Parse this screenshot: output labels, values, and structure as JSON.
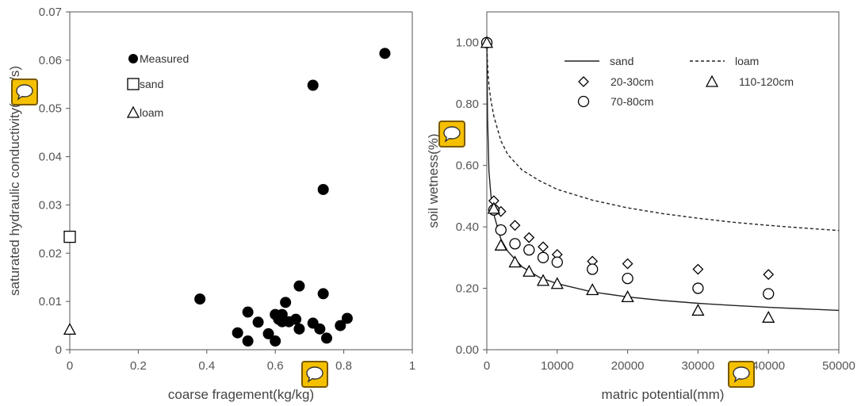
{
  "chart_data": [
    {
      "type": "scatter",
      "xlabel": "coarse fragement(kg/kg)",
      "ylabel": "saturated hydraulic conductivity(mm/s)",
      "xlim": [
        0,
        1
      ],
      "ylim": [
        0,
        0.07
      ],
      "xticks": [
        0,
        0.2,
        0.4,
        0.6,
        0.8,
        1
      ],
      "xtick_labels": [
        "0",
        "0.2",
        "0.4",
        "0.6",
        "0.8",
        "1"
      ],
      "yticks": [
        0,
        0.01,
        0.02,
        0.03,
        0.04,
        0.05,
        0.06,
        0.07
      ],
      "ytick_labels": [
        "0",
        "0.01",
        "0.02",
        "0.03",
        "0.04",
        "0.05",
        "0.06",
        "0.07"
      ],
      "legend": [
        "Measured",
        "sand",
        "loam"
      ],
      "legend_position": "top-left",
      "series": [
        {
          "name": "Measured",
          "marker": "filled-circle",
          "points": [
            [
              0.38,
              0.0105
            ],
            [
              0.49,
              0.0035
            ],
            [
              0.52,
              0.0078
            ],
            [
              0.52,
              0.0018
            ],
            [
              0.55,
              0.0057
            ],
            [
              0.58,
              0.0033
            ],
            [
              0.6,
              0.0073
            ],
            [
              0.6,
              0.0018
            ],
            [
              0.61,
              0.0063
            ],
            [
              0.62,
              0.0073
            ],
            [
              0.62,
              0.0058
            ],
            [
              0.63,
              0.0098
            ],
            [
              0.64,
              0.0058
            ],
            [
              0.66,
              0.0063
            ],
            [
              0.67,
              0.0043
            ],
            [
              0.67,
              0.0132
            ],
            [
              0.71,
              0.0548
            ],
            [
              0.71,
              0.0055
            ],
            [
              0.73,
              0.0043
            ],
            [
              0.74,
              0.0332
            ],
            [
              0.74,
              0.0116
            ],
            [
              0.75,
              0.0024
            ],
            [
              0.79,
              0.005
            ],
            [
              0.81,
              0.0065
            ],
            [
              0.92,
              0.0614
            ]
          ]
        },
        {
          "name": "sand",
          "marker": "open-square",
          "points": [
            [
              0,
              0.0234
            ]
          ]
        },
        {
          "name": "loam",
          "marker": "open-triangle",
          "points": [
            [
              0,
              0.0042
            ]
          ]
        }
      ]
    },
    {
      "type": "line+scatter",
      "xlabel": "matric potential(mm)",
      "ylabel": "soil wetness(%)",
      "xlim": [
        0,
        50000
      ],
      "ylim": [
        0,
        1.1
      ],
      "xticks": [
        0,
        10000,
        20000,
        30000,
        40000,
        50000
      ],
      "xtick_labels": [
        "0",
        "10000",
        "20000",
        "30000",
        "40000",
        "50000"
      ],
      "yticks": [
        0,
        0.2,
        0.4,
        0.6,
        0.8,
        1.0
      ],
      "ytick_labels": [
        "0.00",
        "0.20",
        "0.40",
        "0.60",
        "0.80",
        "1.00"
      ],
      "legend_position": "top",
      "lines": [
        {
          "name": "sand",
          "style": "solid",
          "points": [
            [
              0,
              1.0
            ],
            [
              100,
              0.76
            ],
            [
              300,
              0.58
            ],
            [
              600,
              0.5
            ],
            [
              1000,
              0.44
            ],
            [
              2000,
              0.36
            ],
            [
              3000,
              0.32
            ],
            [
              5000,
              0.27
            ],
            [
              7500,
              0.235
            ],
            [
              10000,
              0.215
            ],
            [
              15000,
              0.188
            ],
            [
              20000,
              0.172
            ],
            [
              25000,
              0.16
            ],
            [
              30000,
              0.151
            ],
            [
              35000,
              0.144
            ],
            [
              40000,
              0.138
            ],
            [
              45000,
              0.133
            ],
            [
              50000,
              0.128
            ]
          ]
        },
        {
          "name": "loam",
          "style": "dashed",
          "points": [
            [
              0,
              1.0
            ],
            [
              100,
              0.93
            ],
            [
              300,
              0.86
            ],
            [
              600,
              0.81
            ],
            [
              1000,
              0.76
            ],
            [
              2000,
              0.68
            ],
            [
              3000,
              0.635
            ],
            [
              5000,
              0.585
            ],
            [
              7500,
              0.55
            ],
            [
              10000,
              0.522
            ],
            [
              15000,
              0.487
            ],
            [
              20000,
              0.462
            ],
            [
              25000,
              0.443
            ],
            [
              30000,
              0.428
            ],
            [
              35000,
              0.415
            ],
            [
              40000,
              0.405
            ],
            [
              45000,
              0.396
            ],
            [
              50000,
              0.388
            ]
          ]
        }
      ],
      "series": [
        {
          "name": "20-30cm",
          "marker": "open-diamond",
          "points": [
            [
              0,
              1.0
            ],
            [
              1000,
              0.485
            ],
            [
              2000,
              0.45
            ],
            [
              4000,
              0.405
            ],
            [
              6000,
              0.365
            ],
            [
              8000,
              0.335
            ],
            [
              10000,
              0.31
            ],
            [
              15000,
              0.288
            ],
            [
              20000,
              0.28
            ],
            [
              30000,
              0.262
            ],
            [
              40000,
              0.245
            ]
          ]
        },
        {
          "name": "70-80cm",
          "marker": "open-circle",
          "points": [
            [
              0,
              1.0
            ],
            [
              1000,
              0.455
            ],
            [
              2000,
              0.39
            ],
            [
              4000,
              0.345
            ],
            [
              6000,
              0.325
            ],
            [
              8000,
              0.3
            ],
            [
              10000,
              0.285
            ],
            [
              15000,
              0.262
            ],
            [
              20000,
              0.232
            ],
            [
              30000,
              0.2
            ],
            [
              40000,
              0.182
            ]
          ]
        },
        {
          "name": "110-120cm",
          "marker": "open-triangle",
          "points": [
            [
              0,
              1.0
            ],
            [
              1000,
              0.46
            ],
            [
              2000,
              0.34
            ],
            [
              4000,
              0.285
            ],
            [
              6000,
              0.255
            ],
            [
              8000,
              0.225
            ],
            [
              10000,
              0.215
            ],
            [
              15000,
              0.195
            ],
            [
              20000,
              0.172
            ],
            [
              30000,
              0.128
            ],
            [
              40000,
              0.105
            ]
          ]
        }
      ]
    }
  ],
  "icons": {
    "overlay": "speech-bubble-icon",
    "overlay_color": "#f5c000"
  }
}
